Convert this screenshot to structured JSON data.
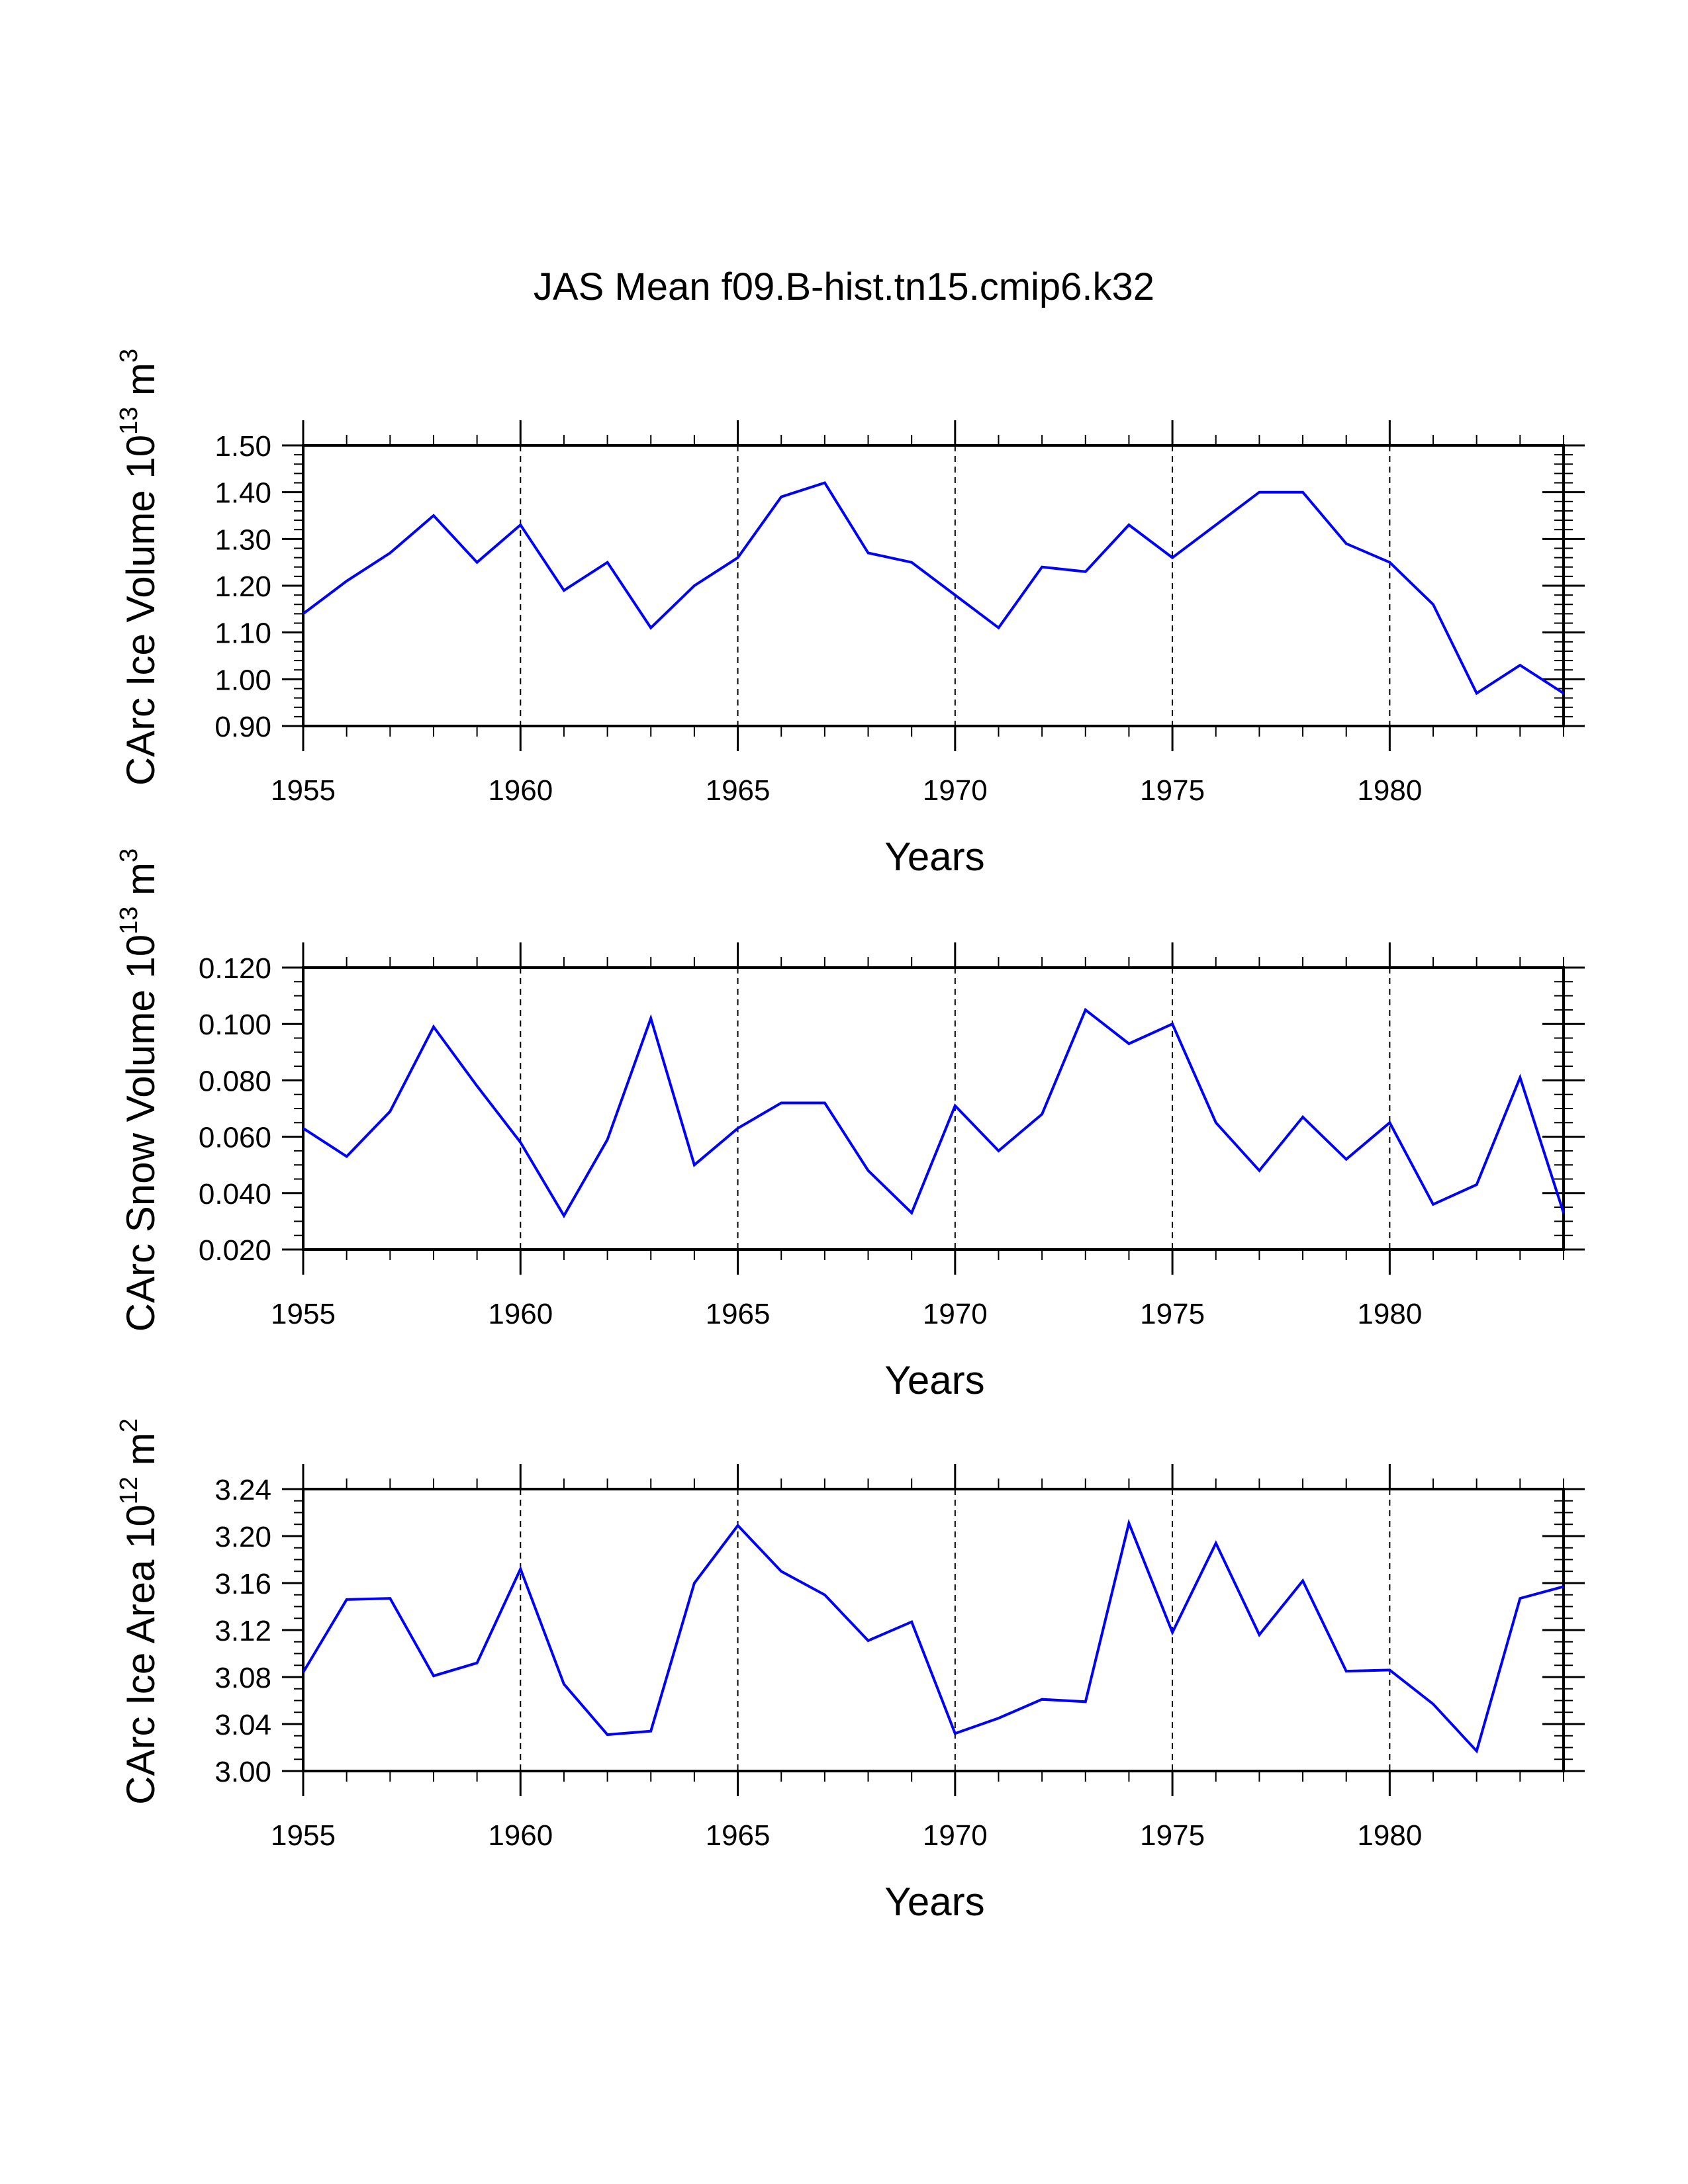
{
  "title": "JAS Mean f09.B-hist.tn15.cmip6.k32",
  "line_color": "#0000ff",
  "chart_data": [
    {
      "type": "line",
      "xlabel": "Years",
      "ylabel_main": "CArc Ice Volume 10",
      "ylabel_exp": "13",
      "ylabel_unit": " m",
      "ylabel_unit_exp": "3",
      "xlim": [
        1955,
        1984
      ],
      "ylim": [
        0.9,
        1.5
      ],
      "yticks": [
        0.9,
        1.0,
        1.1,
        1.2,
        1.3,
        1.4,
        1.5
      ],
      "ytick_labels": [
        "0.90",
        "1.00",
        "1.10",
        "1.20",
        "1.30",
        "1.40",
        "1.50"
      ],
      "yminor_step": 0.02,
      "xticks": [
        1955,
        1960,
        1965,
        1970,
        1975,
        1980
      ],
      "xtick_labels": [
        "1955",
        "1960",
        "1965",
        "1970",
        "1975",
        "1980"
      ],
      "grid_x": [
        1960,
        1965,
        1970,
        1975,
        1980
      ],
      "x": [
        1955,
        1956,
        1957,
        1958,
        1959,
        1960,
        1961,
        1962,
        1963,
        1964,
        1965,
        1966,
        1967,
        1968,
        1969,
        1970,
        1971,
        1972,
        1973,
        1974,
        1975,
        1976,
        1977,
        1978,
        1979,
        1980,
        1981,
        1982,
        1983,
        1984
      ],
      "y": [
        1.14,
        1.21,
        1.27,
        1.35,
        1.25,
        1.33,
        1.19,
        1.25,
        1.11,
        1.2,
        1.26,
        1.39,
        1.42,
        1.27,
        1.25,
        1.18,
        1.11,
        1.24,
        1.23,
        1.33,
        1.26,
        1.33,
        1.4,
        1.4,
        1.29,
        1.25,
        1.16,
        0.97,
        1.03,
        0.97
      ]
    },
    {
      "type": "line",
      "xlabel": "Years",
      "ylabel_main": "CArc Snow Volume 10",
      "ylabel_exp": "13",
      "ylabel_unit": " m",
      "ylabel_unit_exp": "3",
      "xlim": [
        1955,
        1984
      ],
      "ylim": [
        0.02,
        0.12
      ],
      "yticks": [
        0.02,
        0.04,
        0.06,
        0.08,
        0.1,
        0.12
      ],
      "ytick_labels": [
        "0.020",
        "0.040",
        "0.060",
        "0.080",
        "0.100",
        "0.120"
      ],
      "yminor_step": 0.005,
      "xticks": [
        1955,
        1960,
        1965,
        1970,
        1975,
        1980
      ],
      "xtick_labels": [
        "1955",
        "1960",
        "1965",
        "1970",
        "1975",
        "1980"
      ],
      "grid_x": [
        1960,
        1965,
        1970,
        1975,
        1980
      ],
      "x": [
        1955,
        1956,
        1957,
        1958,
        1959,
        1960,
        1961,
        1962,
        1963,
        1964,
        1965,
        1966,
        1967,
        1968,
        1969,
        1970,
        1971,
        1972,
        1973,
        1974,
        1975,
        1976,
        1977,
        1978,
        1979,
        1980,
        1981,
        1982,
        1983,
        1984
      ],
      "y": [
        0.063,
        0.053,
        0.069,
        0.099,
        0.078,
        0.058,
        0.032,
        0.059,
        0.102,
        0.05,
        0.063,
        0.072,
        0.072,
        0.048,
        0.033,
        0.071,
        0.055,
        0.068,
        0.105,
        0.093,
        0.1,
        0.065,
        0.048,
        0.067,
        0.052,
        0.065,
        0.036,
        0.043,
        0.081,
        0.033
      ]
    },
    {
      "type": "line",
      "xlabel": "Years",
      "ylabel_main": "CArc Ice Area 10",
      "ylabel_exp": "12",
      "ylabel_unit": " m",
      "ylabel_unit_exp": "2",
      "xlim": [
        1955,
        1984
      ],
      "ylim": [
        3.0,
        3.24
      ],
      "yticks": [
        3.0,
        3.04,
        3.08,
        3.12,
        3.16,
        3.2,
        3.24
      ],
      "ytick_labels": [
        "3.00",
        "3.04",
        "3.08",
        "3.12",
        "3.16",
        "3.20",
        "3.24"
      ],
      "yminor_step": 0.01,
      "xticks": [
        1955,
        1960,
        1965,
        1970,
        1975,
        1980
      ],
      "xtick_labels": [
        "1955",
        "1960",
        "1965",
        "1970",
        "1975",
        "1980"
      ],
      "grid_x": [
        1960,
        1965,
        1970,
        1975,
        1980
      ],
      "x": [
        1955,
        1956,
        1957,
        1958,
        1959,
        1960,
        1961,
        1962,
        1963,
        1964,
        1965,
        1966,
        1967,
        1968,
        1969,
        1970,
        1971,
        1972,
        1973,
        1974,
        1975,
        1976,
        1977,
        1978,
        1979,
        1980,
        1981,
        1982,
        1983,
        1984
      ],
      "y": [
        3.084,
        3.146,
        3.147,
        3.081,
        3.092,
        3.172,
        3.074,
        3.031,
        3.034,
        3.16,
        3.209,
        3.17,
        3.15,
        3.111,
        3.127,
        3.032,
        3.045,
        3.061,
        3.059,
        3.211,
        3.118,
        3.194,
        3.116,
        3.162,
        3.085,
        3.086,
        3.057,
        3.017,
        3.147,
        3.157
      ]
    }
  ]
}
